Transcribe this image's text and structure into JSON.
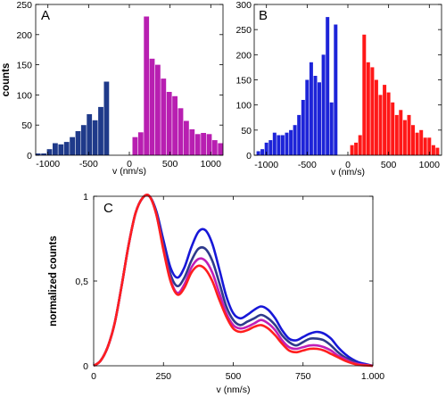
{
  "chart_data": [
    {
      "type": "bar",
      "panel_label": "A",
      "xlabel": "v (nm/s)",
      "ylabel": "counts",
      "xlim": [
        -1150,
        1150
      ],
      "ylim": [
        0,
        250
      ],
      "xticks": [
        -1000,
        -500,
        0,
        500,
        1000
      ],
      "xtick_labels": [
        "-1000",
        "-500",
        "0",
        "500",
        "1000"
      ],
      "yticks": [
        0,
        50,
        100,
        150,
        200,
        250
      ],
      "ytick_labels": [
        "0",
        "50",
        "100",
        "150",
        "200",
        "250"
      ],
      "bin_width": 70,
      "series": [
        {
          "color": "#1f3a8a",
          "x": [
            -1120,
            -1050,
            -980,
            -910,
            -840,
            -770,
            -700,
            -630,
            -560,
            -490,
            -420,
            -350,
            -280
          ],
          "values": [
            3,
            3,
            10,
            20,
            18,
            22,
            30,
            40,
            50,
            68,
            58,
            80,
            122
          ]
        },
        {
          "color": "#b81fb1",
          "x": [
            70,
            140,
            210,
            280,
            350,
            420,
            490,
            560,
            630,
            700,
            770,
            840,
            910,
            980,
            1050,
            1120
          ],
          "values": [
            30,
            38,
            230,
            160,
            150,
            127,
            105,
            98,
            78,
            57,
            43,
            35,
            37,
            35,
            25,
            20
          ]
        }
      ]
    },
    {
      "type": "bar",
      "panel_label": "B",
      "xlabel": "v (nm/s)",
      "ylabel": "",
      "xlim": [
        -1150,
        1150
      ],
      "ylim": [
        0,
        300
      ],
      "xticks": [
        -1000,
        -500,
        0,
        500,
        1000
      ],
      "xtick_labels": [
        "-1000",
        "-500",
        "0",
        "500",
        "1000"
      ],
      "yticks": [
        0,
        50,
        100,
        150,
        200,
        250,
        300
      ],
      "ytick_labels": [
        "0",
        "50",
        "100",
        "150",
        "200",
        "250",
        "300"
      ],
      "bin_width": 50,
      "series": [
        {
          "color": "#1d24d8",
          "x": [
            -1100,
            -1050,
            -1000,
            -950,
            -900,
            -850,
            -800,
            -750,
            -700,
            -650,
            -600,
            -550,
            -500,
            -450,
            -400,
            -350,
            -300,
            -250,
            -200,
            -150
          ],
          "values": [
            8,
            12,
            25,
            30,
            45,
            40,
            40,
            45,
            50,
            60,
            80,
            110,
            150,
            185,
            158,
            145,
            200,
            275,
            105,
            260
          ]
        },
        {
          "color": "#ff1818",
          "x": [
            50,
            100,
            150,
            200,
            250,
            300,
            350,
            400,
            450,
            500,
            550,
            600,
            650,
            700,
            750,
            800,
            850,
            900,
            950,
            1000,
            1050,
            1100
          ],
          "values": [
            20,
            25,
            40,
            240,
            185,
            175,
            150,
            120,
            140,
            125,
            105,
            80,
            90,
            70,
            80,
            60,
            45,
            50,
            35,
            35,
            20,
            15
          ]
        }
      ]
    },
    {
      "type": "line",
      "panel_label": "C",
      "xlabel": "v (nm/s)",
      "ylabel": "normalized counts",
      "xlim": [
        0,
        1000
      ],
      "ylim": [
        0,
        1
      ],
      "xticks": [
        0,
        250,
        500,
        750,
        1000
      ],
      "xtick_labels": [
        "0",
        "250",
        "500",
        "750",
        "1.000"
      ],
      "yticks": [
        0,
        0.5,
        1
      ],
      "ytick_labels": [
        "0",
        "0,5",
        "1"
      ],
      "x": [
        0,
        25,
        50,
        75,
        100,
        125,
        150,
        175,
        200,
        225,
        250,
        275,
        300,
        325,
        350,
        375,
        400,
        425,
        450,
        475,
        500,
        525,
        550,
        575,
        600,
        625,
        650,
        675,
        700,
        725,
        750,
        775,
        800,
        825,
        850,
        875,
        900,
        925,
        950,
        975,
        1000
      ],
      "series": [
        {
          "color": "#1717d8",
          "values": [
            0.0,
            0.03,
            0.11,
            0.25,
            0.47,
            0.71,
            0.9,
            0.99,
            1.0,
            0.91,
            0.74,
            0.58,
            0.52,
            0.58,
            0.7,
            0.79,
            0.8,
            0.72,
            0.57,
            0.41,
            0.31,
            0.28,
            0.3,
            0.33,
            0.35,
            0.33,
            0.28,
            0.21,
            0.16,
            0.15,
            0.17,
            0.19,
            0.2,
            0.19,
            0.16,
            0.11,
            0.07,
            0.04,
            0.02,
            0.01,
            0.0
          ]
        },
        {
          "color": "#2e3a8c",
          "values": [
            0.0,
            0.03,
            0.11,
            0.25,
            0.47,
            0.71,
            0.9,
            0.99,
            1.0,
            0.9,
            0.71,
            0.54,
            0.47,
            0.52,
            0.62,
            0.69,
            0.69,
            0.62,
            0.49,
            0.35,
            0.27,
            0.24,
            0.26,
            0.28,
            0.3,
            0.28,
            0.24,
            0.18,
            0.14,
            0.12,
            0.14,
            0.16,
            0.16,
            0.15,
            0.12,
            0.08,
            0.05,
            0.03,
            0.01,
            0.005,
            0.0
          ]
        },
        {
          "color": "#c01fb8",
          "values": [
            0.0,
            0.03,
            0.11,
            0.25,
            0.47,
            0.71,
            0.9,
            0.99,
            1.0,
            0.89,
            0.69,
            0.51,
            0.43,
            0.48,
            0.58,
            0.63,
            0.62,
            0.55,
            0.43,
            0.31,
            0.24,
            0.22,
            0.23,
            0.25,
            0.27,
            0.25,
            0.21,
            0.15,
            0.11,
            0.1,
            0.11,
            0.12,
            0.12,
            0.11,
            0.09,
            0.06,
            0.04,
            0.02,
            0.01,
            0.005,
            0.0
          ]
        },
        {
          "color": "#ff1f1f",
          "values": [
            0.0,
            0.03,
            0.11,
            0.25,
            0.47,
            0.71,
            0.9,
            0.99,
            1.0,
            0.89,
            0.68,
            0.5,
            0.42,
            0.46,
            0.55,
            0.59,
            0.57,
            0.5,
            0.39,
            0.29,
            0.22,
            0.2,
            0.21,
            0.23,
            0.24,
            0.22,
            0.18,
            0.13,
            0.09,
            0.08,
            0.09,
            0.1,
            0.1,
            0.09,
            0.07,
            0.05,
            0.03,
            0.015,
            0.005,
            0.002,
            0.0
          ]
        }
      ]
    }
  ]
}
